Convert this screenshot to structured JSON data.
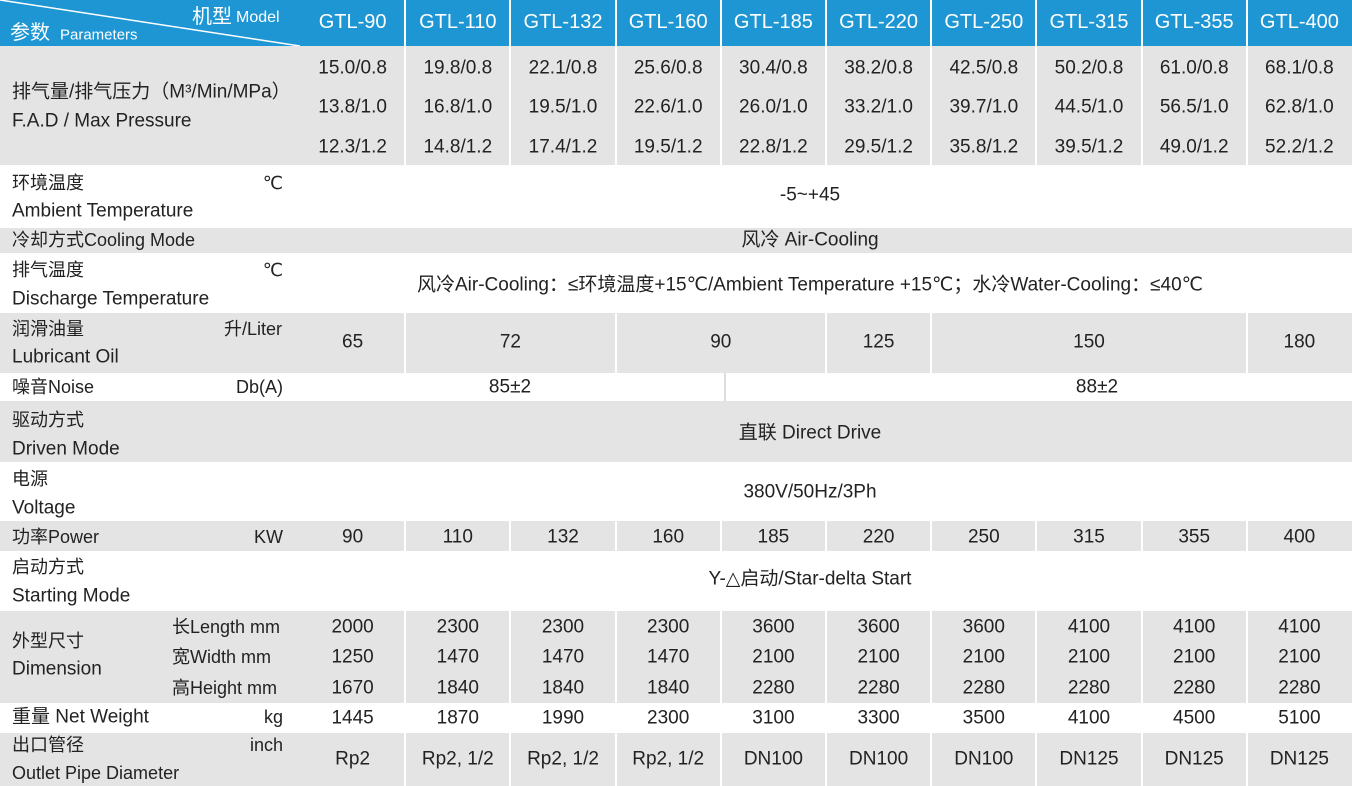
{
  "corner": {
    "model": "机型",
    "model_en": "Model",
    "param": "参数",
    "param_en": "Parameters"
  },
  "models": [
    "GTL-90",
    "GTL-110",
    "GTL-132",
    "GTL-160",
    "GTL-185",
    "GTL-220",
    "GTL-250",
    "GTL-315",
    "GTL-355",
    "GTL-400"
  ],
  "fad": {
    "label": "排气量/排气压力（M³/Min/MPa）",
    "label_en": "F.A.D / Max Pressure",
    "values": [
      [
        "15.0/0.8",
        "19.8/0.8",
        "22.1/0.8",
        "25.6/0.8",
        "30.4/0.8",
        "38.2/0.8",
        "42.5/0.8",
        "50.2/0.8",
        "61.0/0.8",
        "68.1/0.8"
      ],
      [
        "13.8/1.0",
        "16.8/1.0",
        "19.5/1.0",
        "22.6/1.0",
        "26.0/1.0",
        "33.2/1.0",
        "39.7/1.0",
        "44.5/1.0",
        "56.5/1.0",
        "62.8/1.0"
      ],
      [
        "12.3/1.2",
        "14.8/1.2",
        "17.4/1.2",
        "19.5/1.2",
        "22.8/1.2",
        "29.5/1.2",
        "35.8/1.2",
        "39.5/1.2",
        "49.0/1.2",
        "52.2/1.2"
      ]
    ]
  },
  "ambient": {
    "label": "环境温度",
    "unit": "℃",
    "label_en": "Ambient Temperature",
    "value": "-5~+45"
  },
  "cooling": {
    "label": "冷却方式Cooling Mode",
    "value": "风冷 Air-Cooling"
  },
  "discharge": {
    "label": "排气温度",
    "unit": "℃",
    "label_en": "Discharge Temperature",
    "value": "风冷Air-Cooling：≤环境温度+15℃/Ambient Temperature +15℃；水冷Water-Cooling：≤40℃"
  },
  "lubricant": {
    "label": "润滑油量",
    "unit": "升/Liter",
    "label_en": "Lubricant Oil",
    "values": [
      "65",
      "72",
      "90",
      "125",
      "150",
      "180"
    ]
  },
  "noise": {
    "label": "噪音Noise",
    "unit": "Db(A)",
    "values": [
      "85±2",
      "88±2"
    ]
  },
  "driven": {
    "label": "驱动方式",
    "label_en": "Driven Mode",
    "value": "直联 Direct Drive"
  },
  "voltage": {
    "label": "电源",
    "label_en": "Voltage",
    "value": "380V/50Hz/3Ph"
  },
  "power": {
    "label": "功率Power",
    "unit": "KW",
    "values": [
      "90",
      "110",
      "132",
      "160",
      "185",
      "220",
      "250",
      "315",
      "355",
      "400"
    ]
  },
  "starting": {
    "label": "启动方式",
    "label_en": "Starting Mode",
    "value": "Y-△启动/Star-delta Start"
  },
  "dimension": {
    "label": "外型尺寸",
    "label_en": "Dimension",
    "rows": [
      {
        "label": "长Length mm",
        "values": [
          "2000",
          "2300",
          "2300",
          "2300",
          "3600",
          "3600",
          "3600",
          "4100",
          "4100",
          "4100"
        ]
      },
      {
        "label": "宽Width  mm",
        "values": [
          "1250",
          "1470",
          "1470",
          "1470",
          "2100",
          "2100",
          "2100",
          "2100",
          "2100",
          "2100"
        ]
      },
      {
        "label": "高Height mm",
        "values": [
          "1670",
          "1840",
          "1840",
          "1840",
          "2280",
          "2280",
          "2280",
          "2280",
          "2280",
          "2280"
        ]
      }
    ]
  },
  "weight": {
    "label": "重量 Net Weight",
    "unit": "kg",
    "values": [
      "1445",
      "1870",
      "1990",
      "2300",
      "3100",
      "3300",
      "3500",
      "4100",
      "4500",
      "5100"
    ]
  },
  "outlet": {
    "label": "出口管径",
    "unit": "inch",
    "label_en": "Outlet Pipe Diameter",
    "values": [
      "Rp2",
      "Rp2, 1/2",
      "Rp2, 1/2",
      "Rp2, 1/2",
      "DN100",
      "DN100",
      "DN100",
      "DN125",
      "DN125",
      "DN125"
    ]
  }
}
